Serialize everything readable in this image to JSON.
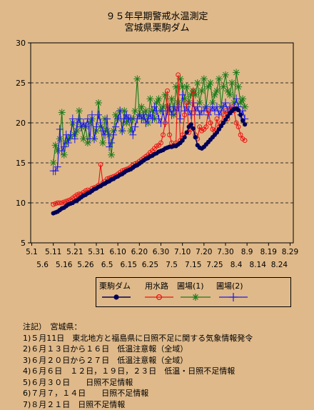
{
  "title_line1": "９５年早期警戒水温測定",
  "title_line2": "宮城県栗駒ダム",
  "legend_labels": [
    "栗駒ダム",
    "用水路",
    "圃場(1)",
    "圃場(2)"
  ],
  "notes": {
    "heading": "注記）　宮城県：",
    "items": [
      "1)５月11日　東北地方と福島県に日照不足に関する気象情報発令",
      "2)６月１３日から１６日　低温注意報（全域）",
      "3)６月２０日から２７日　低温注意報（全域）",
      "4)６月６日　１２日，１９日，２３日　低温・日照不足情報",
      "5)６月３０日　　日照不足情報",
      "6)７月７，１４日　　日照不足情報",
      "7)８月２１日　日照不足情報"
    ]
  },
  "chart_data": {
    "type": "line",
    "ylim": [
      5,
      30
    ],
    "yticks": [
      5,
      10,
      15,
      20,
      25,
      30
    ],
    "grid": "horizontal dashed at 15, 20, 25",
    "xlim": [
      "5.1",
      "8.31"
    ],
    "xticks_row1": [
      "5.1",
      "5.11",
      "5.21",
      "5.31",
      "6.10",
      "6.20",
      "6.30",
      "7.10",
      "7.20",
      "7.30",
      "8.9",
      "8.19",
      "8.29"
    ],
    "xticks_row2": [
      "5.6",
      "5.16",
      "5.26",
      "6.5",
      "6.15",
      "6.25",
      "7.5",
      "7.15",
      "7.25",
      "8.4",
      "8.14",
      "8.24"
    ],
    "x_start": "5.11",
    "x_step_days": 1,
    "series": [
      {
        "name": "栗駒ダム",
        "color": "#000055",
        "marker": "filled-circle",
        "values": [
          8.7,
          8.8,
          8.9,
          9.1,
          9.3,
          9.4,
          9.6,
          9.8,
          9.9,
          10.0,
          10.2,
          10.3,
          10.5,
          10.7,
          10.9,
          11.0,
          11.2,
          11.3,
          11.5,
          11.7,
          11.8,
          12.0,
          12.1,
          12.3,
          12.4,
          12.6,
          12.7,
          12.9,
          13.0,
          13.2,
          13.3,
          13.5,
          13.6,
          13.8,
          14.0,
          14.1,
          14.2,
          14.4,
          14.6,
          14.7,
          14.9,
          15.1,
          15.3,
          15.5,
          15.6,
          15.8,
          15.9,
          16.1,
          16.2,
          16.4,
          16.5,
          16.6,
          16.8,
          16.9,
          17.0,
          17.0,
          17.1,
          17.1,
          17.3,
          17.5,
          17.8,
          18.2,
          18.8,
          19.5,
          19.8,
          19.3,
          18.2,
          17.2,
          16.9,
          16.8,
          17.0,
          17.3,
          17.6,
          17.9,
          18.2,
          18.5,
          18.8,
          19.2,
          19.6,
          20.0,
          20.4,
          20.8,
          21.2,
          21.5,
          21.7,
          21.8,
          21.6,
          21.0,
          20.3,
          19.8
        ]
      },
      {
        "name": "用水路",
        "color": "#ee1111",
        "marker": "open-circle",
        "values": [
          9.8,
          9.9,
          10.0,
          10.0,
          10.0,
          10.1,
          10.2,
          10.3,
          10.4,
          10.6,
          10.8,
          11.0,
          11.1,
          11.1,
          11.3,
          11.5,
          11.6,
          11.5,
          11.8,
          11.9,
          12.0,
          12.2,
          14.8,
          12.5,
          12.7,
          13.0,
          13.1,
          13.2,
          13.3,
          13.4,
          13.6,
          13.8,
          14.0,
          14.1,
          14.2,
          14.3,
          14.5,
          14.7,
          14.9,
          15.0,
          15.2,
          15.4,
          15.6,
          15.8,
          16.0,
          16.3,
          16.5,
          16.8,
          17.1,
          17.2,
          17.5,
          18.5,
          20.0,
          24.0,
          18.5,
          17.5,
          17.2,
          17.5,
          26.0,
          17.8,
          18.5,
          21.0,
          22.5,
          18.8,
          19.2,
          24.0,
          18.5,
          18.0,
          19.5,
          19.0,
          19.2,
          19.5,
          21.5,
          20.0,
          19.2,
          19.0,
          20.5,
          19.5,
          20.0,
          21.0,
          21.5,
          20.5,
          21.5,
          22.0,
          21.5,
          20.0,
          19.5,
          18.5,
          18.0,
          17.8
        ]
      },
      {
        "name": "圃場(1)",
        "color": "#1a7a1a",
        "marker": "star",
        "values": [
          15.0,
          17.2,
          16.5,
          18.0,
          21.3,
          16.0,
          17.5,
          18.0,
          18.3,
          20.0,
          18.5,
          19.0,
          21.5,
          19.5,
          18.0,
          19.5,
          17.5,
          20.0,
          20.5,
          18.0,
          19.0,
          22.5,
          19.5,
          17.5,
          20.5,
          19.0,
          18.5,
          16.0,
          19.0,
          21.0,
          20.5,
          21.5,
          19.0,
          21.5,
          20.0,
          20.5,
          19.0,
          20.5,
          21.5,
          25.5,
          21.0,
          22.0,
          20.5,
          21.5,
          20.0,
          23.0,
          21.5,
          20.5,
          22.5,
          23.0,
          21.5,
          22.0,
          23.5,
          22.0,
          21.5,
          23.0,
          21.0,
          24.5,
          22.5,
          25.5,
          24.5,
          23.0,
          24.5,
          22.5,
          23.5,
          24.0,
          23.5,
          25.0,
          22.5,
          24.0,
          25.5,
          22.0,
          24.5,
          25.0,
          22.5,
          23.5,
          24.0,
          25.5,
          22.0,
          24.5,
          26.0,
          24.0,
          23.5,
          25.0,
          22.5,
          26.3,
          24.5,
          22.5,
          23.0,
          22.0
        ]
      },
      {
        "name": "圃場(2)",
        "color": "#1a1aee",
        "marker": "plus",
        "values": [
          14.0,
          14.0,
          14.5,
          19.2,
          16.5,
          17.0,
          18.5,
          17.5,
          18.5,
          20.5,
          18.0,
          20.0,
          20.5,
          19.5,
          20.0,
          19.5,
          20.5,
          18.0,
          21.0,
          18.0,
          19.5,
          21.0,
          20.0,
          19.0,
          18.5,
          20.5,
          17.0,
          17.5,
          18.5,
          19.5,
          20.5,
          21.5,
          19.0,
          20.5,
          21.0,
          20.5,
          20.5,
          18.5,
          19.5,
          20.5,
          21.0,
          20.5,
          21.0,
          20.0,
          20.5,
          21.0,
          20.5,
          22.0,
          21.5,
          20.5,
          20.0,
          21.5,
          20.0,
          21.5,
          22.0,
          21.0,
          22.0,
          21.5,
          22.0,
          20.5,
          23.5,
          21.5,
          22.0,
          21.5,
          21.0,
          22.5,
          21.5,
          22.0,
          21.0,
          21.5,
          21.5,
          22.0,
          21.0,
          21.5,
          22.0,
          21.5,
          22.0,
          21.0,
          21.5,
          22.0,
          22.5,
          21.5,
          22.0,
          21.5,
          22.0,
          23.0,
          22.0,
          21.0,
          21.5,
          20.5
        ]
      }
    ]
  }
}
